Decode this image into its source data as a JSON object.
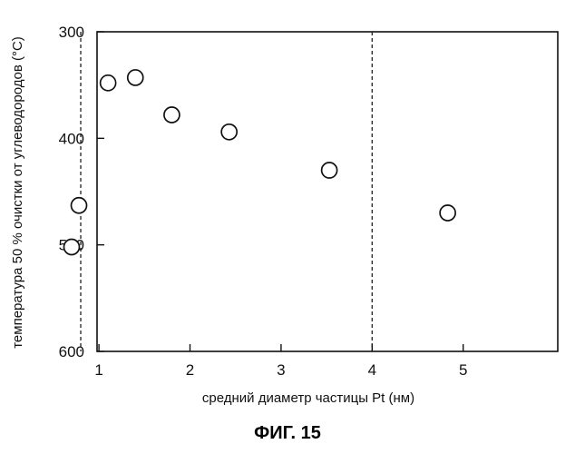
{
  "chart_data": {
    "type": "scatter",
    "xlabel": "средний диаметр частицы Pt (нм)",
    "ylabel": "температура 50 % очистки от углеводородов (°С)",
    "xlim": [
      0,
      5
    ],
    "ylim": [
      300,
      600
    ],
    "y_inverted": true,
    "x_ticks": [
      "1",
      "2",
      "3",
      "4",
      "5"
    ],
    "y_ticks": [
      "300",
      "400",
      "500",
      "600"
    ],
    "grid": false,
    "reference_lines_x": [
      0.8,
      4.0
    ],
    "points": [
      {
        "x": 0.7,
        "y": 502
      },
      {
        "x": 0.78,
        "y": 463
      },
      {
        "x": 1.1,
        "y": 348
      },
      {
        "x": 1.4,
        "y": 343
      },
      {
        "x": 1.8,
        "y": 378
      },
      {
        "x": 2.43,
        "y": 394
      },
      {
        "x": 3.53,
        "y": 430
      },
      {
        "x": 4.83,
        "y": 470
      }
    ],
    "caption": "ФИГ. 15"
  }
}
